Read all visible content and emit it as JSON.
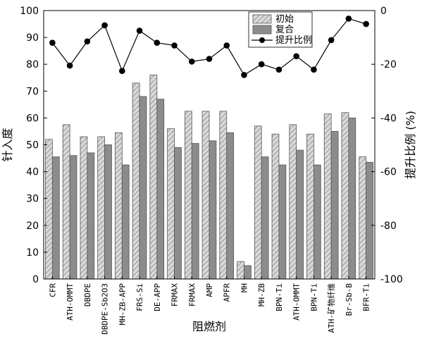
{
  "chart_data": {
    "type": "bar",
    "xlabel": "阻燃剂",
    "ylabel": "针入度",
    "y2label": "提升比例 (%)",
    "ylim": [
      0,
      100
    ],
    "y2lim": [
      -100,
      0
    ],
    "yticks": [
      "0",
      "10",
      "20",
      "30",
      "40",
      "50",
      "60",
      "70",
      "80",
      "90",
      "100"
    ],
    "y2ticks": [
      "-100",
      "-80",
      "-60",
      "-40",
      "-20",
      "0"
    ],
    "legend_position": "top-center",
    "categories": [
      "CFR",
      "ATH-OMMT",
      "DBDPE",
      "DBDPE-Sb2O3",
      "MH-ZB-APP",
      "FRS-Si",
      "DE-APP",
      "FRMAX",
      "FRMAX",
      "AMP",
      "APFR",
      "MH",
      "MH-ZB",
      "BPN-Ti",
      "ATH-OMMT",
      "BPN-Ti",
      "ATH-矿物纤维",
      "Br-Sb-B",
      "BFR-Ti"
    ],
    "series": [
      {
        "name": "初始",
        "kind": "bar",
        "style": "hatched",
        "color": "#c8c8c8",
        "values": [
          52,
          57.5,
          53,
          53,
          54.5,
          73,
          76,
          56,
          62.5,
          62.5,
          62.5,
          6.5,
          57,
          54,
          57.5,
          54,
          61.5,
          62,
          45.5
        ]
      },
      {
        "name": "复合",
        "kind": "bar",
        "style": "solid",
        "color": "#8c8c8c",
        "values": [
          45.5,
          46,
          47,
          50,
          42.5,
          68,
          67,
          49,
          50.5,
          51.5,
          54.5,
          5,
          45.5,
          42.5,
          48,
          42.5,
          55,
          60,
          43.5
        ]
      },
      {
        "name": "提升比例",
        "kind": "line",
        "axis": "right",
        "color": "#000000",
        "values": [
          -12,
          -20.5,
          -11.5,
          -5.5,
          -22.5,
          -7.5,
          -12,
          -13,
          -19,
          -18,
          -13,
          -24,
          -20,
          -22,
          -17,
          -22,
          -11,
          -3,
          -5
        ]
      }
    ]
  }
}
